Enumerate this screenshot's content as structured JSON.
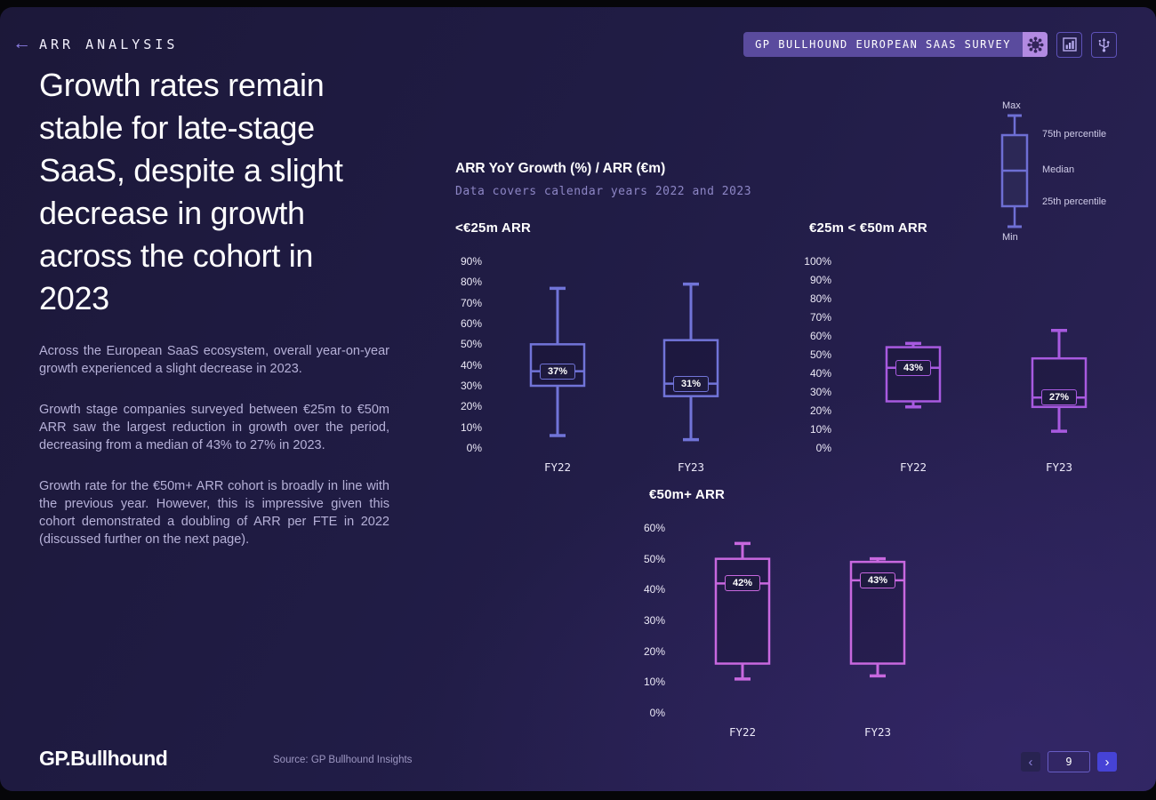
{
  "page": {
    "section_label": "ARR ANALYSIS",
    "survey_badge": "GP BULLHOUND EUROPEAN SAAS SURVEY",
    "headline": "Growth rates remain stable for late-stage SaaS, despite a slight decrease in growth across the cohort in 2023",
    "paragraphs": [
      "Across the European SaaS ecosystem, overall year-on-year growth experienced a slight decrease in 2023.",
      "Growth stage companies surveyed between €25m to €50m ARR saw the largest reduction in growth over the period, decreasing from a median of 43% to 27% in 2023.",
      "Growth rate for the €50m+ ARR cohort is broadly in line with the previous year. However, this is impressive given this cohort demonstrated a doubling of ARR per FTE in 2022 (discussed further on the next page)."
    ],
    "logo": "GP.Bullhound",
    "source": "Source: GP Bullhound Insights",
    "page_number": "9"
  },
  "chart_header": {
    "title": "ARR YoY Growth (%) / ARR (€m)",
    "subtitle": "Data covers calendar years 2022 and 2023"
  },
  "legend": {
    "max": "Max",
    "p75": "75th percentile",
    "median": "Median",
    "p25": "25th percentile",
    "min": "Min"
  },
  "colors": {
    "cohort_lt25m": "#7174d8",
    "cohort_25_50m": "#a85ae0",
    "cohort_50m_plus": "#c868df",
    "accent_next_button": "#4643d6",
    "badge_bg": "#5a4b9e"
  },
  "chart_data": [
    {
      "type": "boxplot",
      "title": "<€25m ARR",
      "unit": "%",
      "ymax": 90,
      "ystep": 10,
      "ylim": [
        0,
        90
      ],
      "color": "#7174d8",
      "categories": [
        "FY22",
        "FY23"
      ],
      "series": [
        {
          "category": "FY22",
          "min": 6,
          "p25": 30,
          "median": 37,
          "p75": 50,
          "max": 77,
          "median_label": "37%"
        },
        {
          "category": "FY23",
          "min": 4,
          "p25": 25,
          "median": 31,
          "p75": 52,
          "max": 79,
          "median_label": "31%"
        }
      ]
    },
    {
      "type": "boxplot",
      "title": "€25m < €50m ARR",
      "unit": "%",
      "ymax": 100,
      "ystep": 10,
      "ylim": [
        0,
        100
      ],
      "color": "#a85ae0",
      "categories": [
        "FY22",
        "FY23"
      ],
      "series": [
        {
          "category": "FY22",
          "min": 22,
          "p25": 25,
          "median": 43,
          "p75": 54,
          "max": 56,
          "median_label": "43%"
        },
        {
          "category": "FY23",
          "min": 9,
          "p25": 22,
          "median": 27,
          "p75": 48,
          "max": 63,
          "median_label": "27%"
        }
      ]
    },
    {
      "type": "boxplot",
      "title": "€50m+ ARR",
      "unit": "%",
      "ymax": 60,
      "ystep": 10,
      "ylim": [
        0,
        60
      ],
      "color": "#c868df",
      "categories": [
        "FY22",
        "FY23"
      ],
      "series": [
        {
          "category": "FY22",
          "min": 11,
          "p25": 16,
          "median": 42,
          "p75": 50,
          "max": 55,
          "median_label": "42%"
        },
        {
          "category": "FY23",
          "min": 12,
          "p25": 16,
          "median": 43,
          "p75": 49,
          "max": 50,
          "median_label": "43%"
        }
      ]
    }
  ]
}
